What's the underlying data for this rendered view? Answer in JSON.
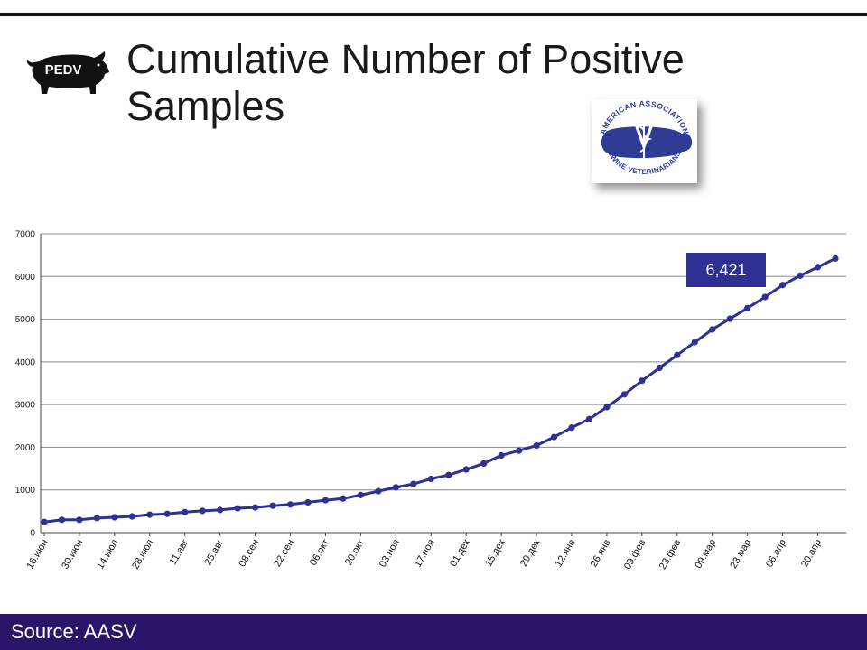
{
  "slide": {
    "title": "Cumulative Number of Positive Samples",
    "badge_text": "PEDV",
    "source": "Source: AASV",
    "callout": "6,421"
  },
  "logo": {
    "top_text": "AMERICAN ASSOCIATION",
    "bottom_text": "SWINE VETERINARIANS",
    "color": "#2e3c96"
  },
  "colors": {
    "line": "#2e3192",
    "footer": "#2b1569",
    "callout_bg": "#2e3192"
  },
  "chart_data": {
    "type": "line",
    "title": "",
    "xlabel": "",
    "ylabel": "",
    "ylim": [
      0,
      7000
    ],
    "yticks": [
      0,
      1000,
      2000,
      3000,
      4000,
      5000,
      6000,
      7000
    ],
    "grid": true,
    "legend": "none",
    "x_tick_labels": [
      "16.июн",
      "30.июн",
      "14.июл",
      "28.июл",
      "11.авг",
      "25.авг",
      "08.сен",
      "22.сен",
      "06.окт",
      "20.окт",
      "03.ноя",
      "17.ноя",
      "01.дек",
      "15.дек",
      "29.дек",
      "12.янв",
      "26.янв",
      "09.фев",
      "23.фев",
      "09.мар",
      "23.мар",
      "06.апр",
      "20.апр"
    ],
    "series": [
      {
        "values": [
          250,
          300,
          300,
          340,
          360,
          380,
          420,
          440,
          480,
          510,
          530,
          570,
          590,
          630,
          660,
          710,
          760,
          800,
          880,
          970,
          1060,
          1140,
          1260,
          1350,
          1480,
          1620,
          1810,
          1920,
          2040,
          2240,
          2460,
          2660,
          2940,
          3240,
          3560,
          3860,
          4160,
          4460,
          4760,
          5010,
          5260,
          5520,
          5800,
          6020,
          6220,
          6421
        ]
      }
    ]
  }
}
